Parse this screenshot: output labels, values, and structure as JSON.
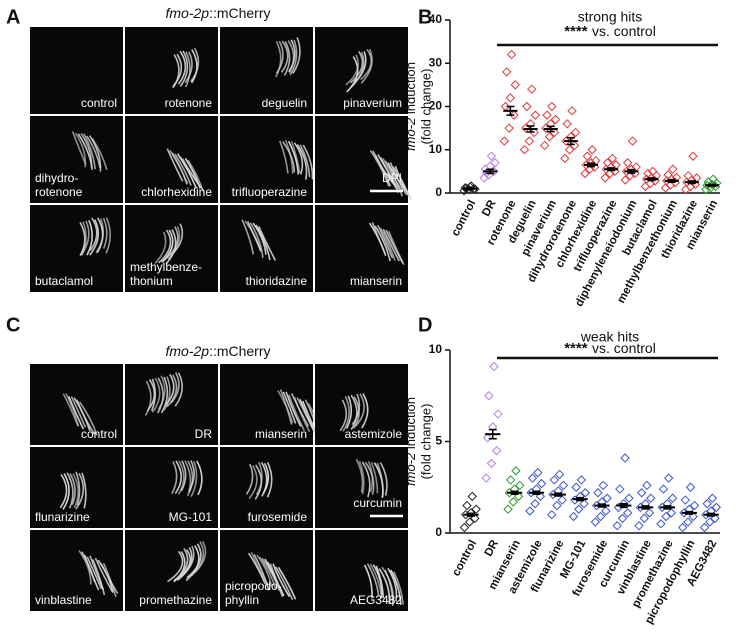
{
  "panels": [
    "A",
    "B",
    "C",
    "D"
  ],
  "image_panels": [
    {
      "title_italic": "fmo-2p",
      "title_rest": "::mCherry",
      "labels": [
        [
          "control"
        ],
        [
          "rotenone"
        ],
        [
          "deguelin"
        ],
        [
          "pinaverium"
        ],
        [
          "dihydro-",
          "rotenone"
        ],
        [
          "chlorhexidine"
        ],
        [
          "trifluoperazine"
        ],
        [
          "DPI"
        ],
        [
          "butaclamol"
        ],
        [
          "methylbenze-",
          "thonium"
        ],
        [
          "thioridazine"
        ],
        [
          "mianserin"
        ]
      ]
    },
    {
      "title_italic": "fmo-2p",
      "title_rest": "::mCherry",
      "labels": [
        [
          "control"
        ],
        [
          "DR"
        ],
        [
          "mianserin"
        ],
        [
          "astemizole"
        ],
        [
          "flunarizine"
        ],
        [
          "MG-101"
        ],
        [
          "furosemide"
        ],
        [
          "curcumin"
        ],
        [
          "vinblastine"
        ],
        [
          "promethazine"
        ],
        [
          "picropodo-",
          "phyllin"
        ],
        [
          "AEG3482"
        ]
      ]
    }
  ],
  "chart_data": [
    {
      "type": "strip",
      "title": "strong hits",
      "annotation_stars": "****",
      "annotation": "vs. control",
      "ylabel_italic": "fmo-2",
      "ylabel_rest": "induction",
      "ylabel_line2": "(fold change)",
      "categories": [
        "control",
        "DR",
        "rotenone",
        "deguelin",
        "pinaverium",
        "dihydrorotenone",
        "chlorhexidine",
        "trifluoperazine",
        "diphenyleneiodonium",
        "butaclamol",
        "methylbenzethonium",
        "thioridazine",
        "mianserin"
      ],
      "colors": [
        "#222222",
        "#b57ee6",
        "#e03a3a",
        "#e03a3a",
        "#e03a3a",
        "#e03a3a",
        "#e03a3a",
        "#e03a3a",
        "#e03a3a",
        "#e03a3a",
        "#e03a3a",
        "#e03a3a",
        "#2e9a2e"
      ],
      "values": [
        1,
        5,
        19,
        14.8,
        14.8,
        12,
        6.5,
        5.5,
        5,
        3.2,
        2.8,
        2.5,
        1.8
      ],
      "errors": [
        0.2,
        0.5,
        1,
        0.7,
        0.6,
        0.8,
        0.4,
        0.3,
        0.4,
        0.3,
        0.3,
        0.3,
        0.2
      ],
      "points": [
        [
          0.5,
          0.8,
          1,
          1.2,
          1.4,
          0.9,
          1.1,
          1.6
        ],
        [
          3.5,
          4.2,
          5,
          5.5,
          6.2,
          7,
          4.6,
          8.5
        ],
        [
          12,
          15,
          18,
          20,
          22,
          25,
          28,
          32
        ],
        [
          10,
          12,
          14,
          15,
          16,
          18,
          20,
          24
        ],
        [
          11,
          13,
          14,
          15,
          16,
          17,
          18,
          20
        ],
        [
          8,
          10,
          11,
          12,
          13,
          14,
          16,
          19
        ],
        [
          4.5,
          5.5,
          6,
          6.5,
          7,
          7.5,
          8.5,
          10
        ],
        [
          3.5,
          4.5,
          5,
          5.5,
          6,
          6.5,
          7,
          8
        ],
        [
          3,
          4,
          4.5,
          5,
          5.5,
          6,
          7,
          12
        ],
        [
          1.5,
          2.2,
          2.8,
          3.2,
          3.5,
          4,
          4.5,
          5
        ],
        [
          1.2,
          1.8,
          2.4,
          2.8,
          3.2,
          3.6,
          4.2,
          5.5
        ],
        [
          0.8,
          1.5,
          2,
          2.5,
          3,
          3.5,
          4,
          8.5
        ],
        [
          0.8,
          1.2,
          1.5,
          1.8,
          2,
          2.3,
          2.6,
          3.2
        ]
      ],
      "ylim": [
        0,
        40
      ],
      "yticks": [
        0,
        10,
        20,
        30,
        40
      ]
    },
    {
      "type": "strip",
      "title": "weak hits",
      "annotation_stars": "****",
      "annotation": "vs. control",
      "ylabel_italic": "fmo-2",
      "ylabel_rest": "induction",
      "ylabel_line2": "(fold change)",
      "categories": [
        "control",
        "DR",
        "mianserin",
        "astemizole",
        "flunarizine",
        "MG-101",
        "furosemide",
        "curcumin",
        "vinblastine",
        "promethazine",
        "picropodophyllin",
        "AEG3482"
      ],
      "colors": [
        "#222222",
        "#b57ee6",
        "#2e9a2e",
        "#3a55d6",
        "#3a55d6",
        "#3a55d6",
        "#3a55d6",
        "#3a55d6",
        "#3a55d6",
        "#3a55d6",
        "#3a55d6",
        "#3a55d6"
      ],
      "values": [
        1,
        5.4,
        2.2,
        2.2,
        2.1,
        1.85,
        1.5,
        1.5,
        1.4,
        1.4,
        1.1,
        1
      ],
      "errors": [
        0.08,
        0.25,
        0.08,
        0.08,
        0.08,
        0.08,
        0.08,
        0.1,
        0.08,
        0.08,
        0.07,
        0.07
      ],
      "points": [
        [
          0.3,
          0.6,
          0.8,
          1,
          1.1,
          1.3,
          1.5,
          2
        ],
        [
          3,
          3.8,
          4.5,
          5.2,
          5.8,
          6.5,
          7.5,
          9.1
        ],
        [
          1.3,
          1.7,
          2,
          2.2,
          2.4,
          2.6,
          2.9,
          3.4
        ],
        [
          1.2,
          1.6,
          2,
          2.2,
          2.4,
          2.7,
          3,
          3.3
        ],
        [
          1,
          1.5,
          1.8,
          2.1,
          2.3,
          2.6,
          2.9,
          3.2
        ],
        [
          0.9,
          1.3,
          1.6,
          1.8,
          2,
          2.2,
          2.5,
          2.9
        ],
        [
          0.6,
          0.9,
          1.2,
          1.5,
          1.7,
          1.9,
          2.2,
          2.6
        ],
        [
          0.4,
          0.8,
          1.1,
          1.4,
          1.6,
          1.9,
          2.4,
          4.1
        ],
        [
          0.4,
          0.8,
          1.1,
          1.4,
          1.6,
          1.9,
          2.2,
          2.6
        ],
        [
          0.5,
          0.9,
          1.1,
          1.4,
          1.6,
          1.9,
          2.4,
          3
        ],
        [
          0.3,
          0.6,
          0.9,
          1.1,
          1.3,
          1.5,
          1.8,
          2.5
        ],
        [
          0.3,
          0.6,
          0.8,
          1,
          1.2,
          1.4,
          1.6,
          1.9
        ]
      ],
      "ylim": [
        0,
        10
      ],
      "yticks": [
        0,
        5,
        10
      ]
    }
  ]
}
